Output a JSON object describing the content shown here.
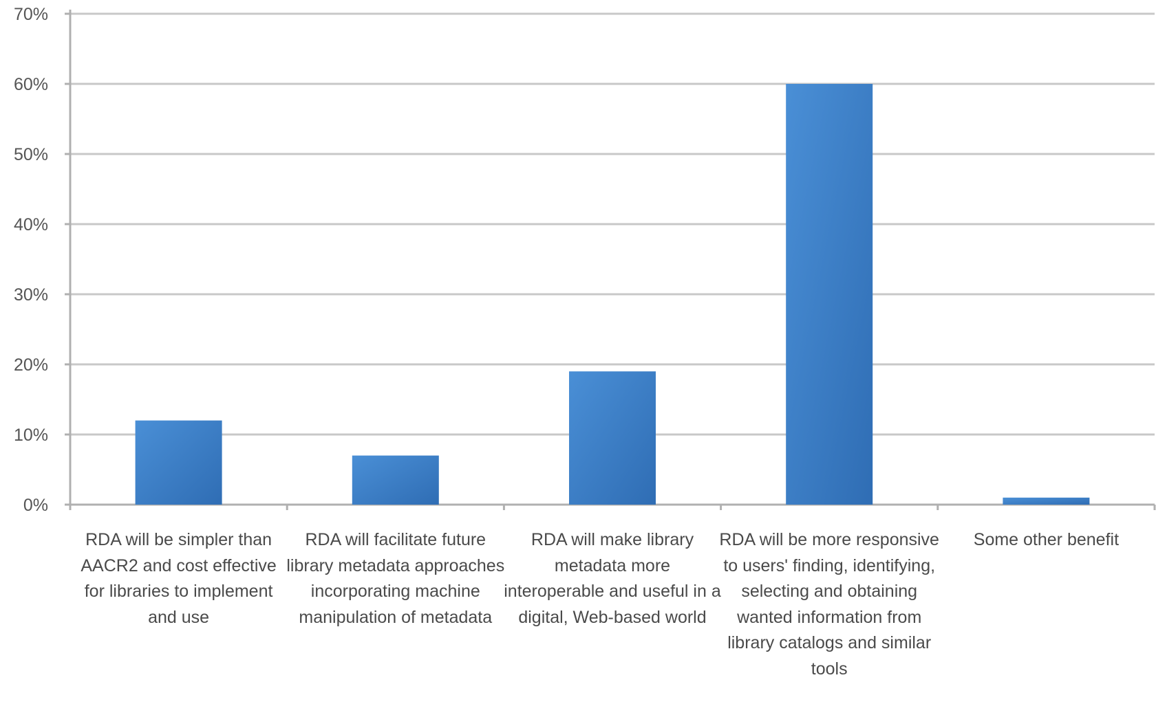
{
  "chart_data": {
    "type": "bar",
    "title": "",
    "xlabel": "",
    "ylabel": "",
    "ylim": [
      0,
      70
    ],
    "y_tick_labels": [
      "0%",
      "10%",
      "20%",
      "30%",
      "40%",
      "50%",
      "60%",
      "70%"
    ],
    "y_tick_values": [
      0,
      10,
      20,
      30,
      40,
      50,
      60,
      70
    ],
    "grid": true,
    "legend": "none",
    "categories": [
      "RDA will be simpler than AACR2 and cost effective for libraries to implement and use",
      "RDA will facilitate future library metadata approaches incorporating machine manipulation of metadata",
      "RDA will make library metadata more interoperable and useful in a digital, Web-based world",
      "RDA will be more responsive to users' finding, identifying, selecting and obtaining wanted information from library catalogs and similar tools",
      "Some other benefit"
    ],
    "values": [
      12,
      7,
      19,
      60,
      1
    ],
    "colors": {
      "bar_top": "#4a8fd6",
      "bar_bottom": "#2f6db4",
      "gridline": "#c8c8c8",
      "axis": "#b0b0b0",
      "tick_text": "#555555",
      "category_text": "#4a4a4a"
    }
  }
}
